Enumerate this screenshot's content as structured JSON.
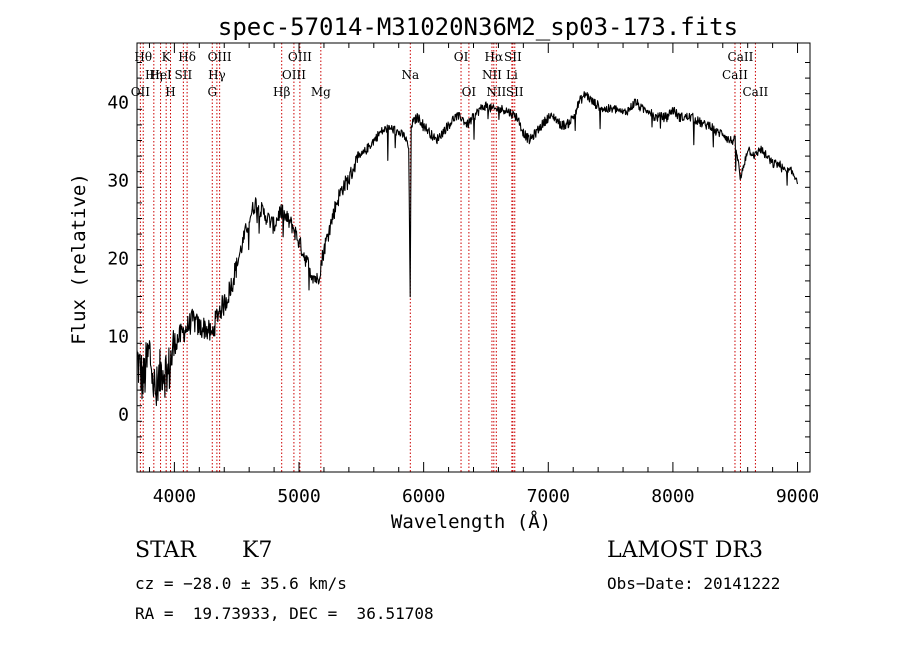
{
  "chart_data": {
    "type": "line",
    "title": "spec-57014-M31020N36M2_sp03-173.fits",
    "xlabel": "Wavelength (Å)",
    "ylabel": "Flux (relative)",
    "xlim": [
      3700,
      9100
    ],
    "ylim": [
      -7.5,
      47.5
    ],
    "xticks": [
      4000,
      5000,
      6000,
      7000,
      8000,
      9000
    ],
    "yticks": [
      0,
      10,
      20,
      30,
      40
    ],
    "grid": false,
    "series": [
      {
        "name": "spectrum",
        "x": [
          3700,
          3750,
          3800,
          3850,
          3900,
          3950,
          4000,
          4050,
          4100,
          4150,
          4200,
          4250,
          4300,
          4350,
          4400,
          4450,
          4500,
          4550,
          4600,
          4650,
          4700,
          4750,
          4800,
          4850,
          4900,
          4950,
          5000,
          5050,
          5100,
          5150,
          5200,
          5250,
          5300,
          5350,
          5400,
          5450,
          5500,
          5550,
          5600,
          5650,
          5700,
          5750,
          5800,
          5850,
          5880,
          5892,
          5900,
          5950,
          6000,
          6050,
          6100,
          6150,
          6200,
          6250,
          6300,
          6350,
          6400,
          6450,
          6500,
          6550,
          6600,
          6650,
          6700,
          6750,
          6800,
          6850,
          6900,
          6950,
          7000,
          7050,
          7100,
          7150,
          7200,
          7250,
          7300,
          7350,
          7400,
          7450,
          7500,
          7550,
          7600,
          7650,
          7700,
          7750,
          7800,
          7850,
          7900,
          7950,
          8000,
          8050,
          8100,
          8150,
          8200,
          8250,
          8300,
          8350,
          8400,
          8450,
          8500,
          8542,
          8600,
          8662,
          8700,
          8750,
          8800,
          8850,
          8900,
          8950,
          9000
        ],
        "y": [
          7,
          4,
          8,
          2,
          6,
          5,
          9,
          10,
          11,
          12,
          11,
          11,
          10,
          13,
          14,
          16,
          19,
          22,
          25,
          27,
          26,
          25,
          24,
          26,
          25,
          24,
          22,
          20,
          18,
          17,
          21,
          24,
          27,
          29,
          30,
          32,
          33,
          34,
          35,
          36,
          36.5,
          36.5,
          36,
          35.5,
          34,
          15,
          37,
          38,
          37,
          36,
          35,
          36,
          37,
          38,
          38,
          37,
          38,
          39,
          39.5,
          39,
          39,
          39,
          38.5,
          38,
          36,
          35,
          36,
          37,
          38,
          38,
          37,
          37,
          38,
          40,
          41,
          40,
          39.5,
          39,
          39,
          39,
          38.5,
          39,
          40,
          39,
          39,
          38,
          38,
          38,
          39,
          38,
          38,
          38,
          37.5,
          37,
          37,
          36,
          36,
          35,
          35,
          30,
          34,
          33,
          34,
          33,
          32,
          32,
          31,
          31,
          30
        ]
      }
    ],
    "line_markers": [
      {
        "x": 3727,
        "row": 2,
        "label": "OII"
      },
      {
        "x": 3750,
        "row": 0,
        "label": "Hθ"
      },
      {
        "x": 3835,
        "row": 1,
        "label": "Hη"
      },
      {
        "x": 3889,
        "row": 1,
        "label": "HeI"
      },
      {
        "x": 3934,
        "row": 0,
        "label": "K"
      },
      {
        "x": 3969,
        "row": 2,
        "label": "H"
      },
      {
        "x": 4072,
        "row": 1,
        "label": "SII"
      },
      {
        "x": 4102,
        "row": 0,
        "label": "Hδ"
      },
      {
        "x": 4304,
        "row": 2,
        "label": "G"
      },
      {
        "x": 4341,
        "row": 1,
        "label": "Hγ"
      },
      {
        "x": 4363,
        "row": 0,
        "label": "OIII"
      },
      {
        "x": 4861,
        "row": 2,
        "label": "Hβ"
      },
      {
        "x": 4959,
        "row": 1,
        "label": "OIII"
      },
      {
        "x": 5007,
        "row": 0,
        "label": "OIII"
      },
      {
        "x": 5175,
        "row": 2,
        "label": "Mg"
      },
      {
        "x": 5893,
        "row": 1,
        "label": "Na"
      },
      {
        "x": 6300,
        "row": 0,
        "label": "OI"
      },
      {
        "x": 6363,
        "row": 2,
        "label": "OI"
      },
      {
        "x": 6548,
        "row": 1,
        "label": "NII"
      },
      {
        "x": 6563,
        "row": 0,
        "label": "Hα"
      },
      {
        "x": 6583,
        "row": 2,
        "label": "NII"
      },
      {
        "x": 6708,
        "row": 1,
        "label": "Li"
      },
      {
        "x": 6716,
        "row": 0,
        "label": "SII"
      },
      {
        "x": 6731,
        "row": 2,
        "label": "SII"
      },
      {
        "x": 8498,
        "row": 1,
        "label": "CaII"
      },
      {
        "x": 8542,
        "row": 0,
        "label": "CaII"
      },
      {
        "x": 8662,
        "row": 2,
        "label": "CaII"
      }
    ]
  },
  "info": {
    "object_type": "STAR",
    "subclass": "K7",
    "survey": "LAMOST DR3",
    "cz": "cz = −28.0 ± 35.6 km/s",
    "obs_date": "Obs−Date: 20141222",
    "coords": "RA =  19.73933, DEC =  36.51708"
  },
  "colors": {
    "line": "#000000",
    "marker": "#cc0000",
    "background": "#ffffff"
  }
}
